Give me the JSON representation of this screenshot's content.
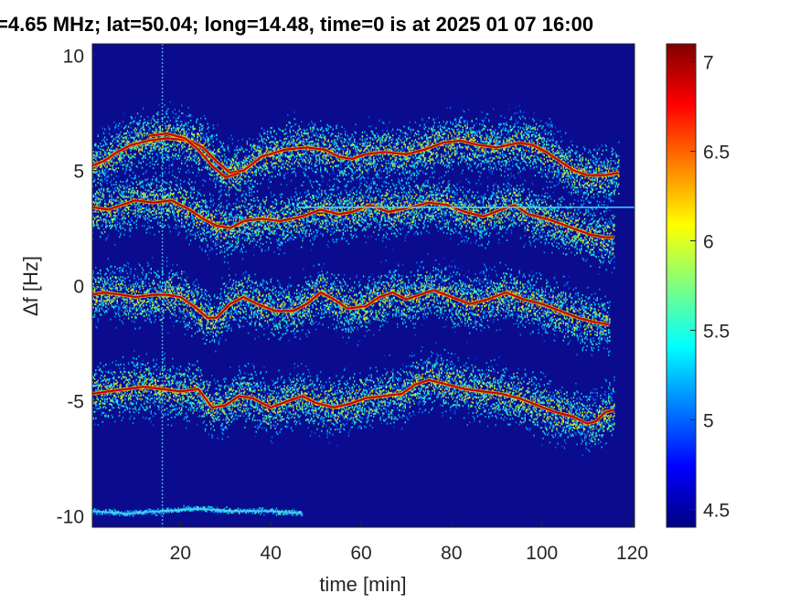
{
  "chart_data": {
    "type": "heatmap",
    "title": "=4.65 MHz;  lat=50.04; long=14.48, time=0 is at 2025 01 07 16:00",
    "xlabel": "time [min]",
    "ylabel": "Δf [Hz]",
    "xlim": [
      0.5,
      120.5
    ],
    "ylim": [
      -10.5,
      10.5
    ],
    "xticks": [
      20,
      40,
      60,
      80,
      100,
      120
    ],
    "yticks": [
      10,
      5,
      0,
      -5,
      -10
    ],
    "colorbar": {
      "clim": [
        4.4,
        7.1
      ],
      "ticks": [
        7,
        6.5,
        6,
        5.5,
        5,
        4.5
      ],
      "colormap": "jet"
    },
    "background_value": 4.4,
    "traces": [
      {
        "name": "upper",
        "points": [
          [
            0.5,
            5.2
          ],
          [
            3,
            5.4
          ],
          [
            6,
            5.8
          ],
          [
            9,
            6.1
          ],
          [
            13,
            6.3
          ],
          [
            17,
            6.4
          ],
          [
            22,
            6.3
          ],
          [
            25,
            6.0
          ],
          [
            28,
            5.4
          ],
          [
            31,
            4.9
          ],
          [
            34,
            5.0
          ],
          [
            38,
            5.6
          ],
          [
            43,
            5.9
          ],
          [
            48,
            6.0
          ],
          [
            52,
            5.9
          ],
          [
            55,
            5.6
          ],
          [
            58,
            5.5
          ],
          [
            61,
            5.7
          ],
          [
            65,
            5.8
          ],
          [
            70,
            5.7
          ],
          [
            74,
            5.9
          ],
          [
            78,
            6.2
          ],
          [
            82,
            6.3
          ],
          [
            86,
            6.1
          ],
          [
            90,
            6.0
          ],
          [
            95,
            6.2
          ],
          [
            98,
            6.1
          ],
          [
            101,
            5.8
          ],
          [
            104,
            5.4
          ],
          [
            107,
            5.0
          ],
          [
            110,
            4.8
          ],
          [
            114,
            4.8
          ],
          [
            117,
            4.9
          ]
        ]
      },
      {
        "name": "upper-secondary",
        "points": [
          [
            13,
            6.5
          ],
          [
            17,
            6.6
          ],
          [
            21,
            6.4
          ],
          [
            24,
            5.9
          ],
          [
            27,
            5.2
          ],
          [
            30,
            4.7
          ],
          [
            33,
            4.9
          ]
        ]
      },
      {
        "name": "middle-upper",
        "points": [
          [
            0.5,
            3.4
          ],
          [
            4,
            3.3
          ],
          [
            7,
            3.5
          ],
          [
            10,
            3.7
          ],
          [
            14,
            3.6
          ],
          [
            18,
            3.7
          ],
          [
            22,
            3.3
          ],
          [
            25,
            2.9
          ],
          [
            28,
            2.6
          ],
          [
            31,
            2.5
          ],
          [
            34,
            2.8
          ],
          [
            38,
            2.9
          ],
          [
            42,
            2.8
          ],
          [
            47,
            3.0
          ],
          [
            51,
            3.3
          ],
          [
            55,
            3.1
          ],
          [
            58,
            3.2
          ],
          [
            62,
            3.5
          ],
          [
            66,
            3.2
          ],
          [
            71,
            3.4
          ],
          [
            75,
            3.6
          ],
          [
            79,
            3.5
          ],
          [
            83,
            3.2
          ],
          [
            87,
            3.0
          ],
          [
            91,
            3.3
          ],
          [
            94,
            3.5
          ],
          [
            97,
            3.1
          ],
          [
            101,
            2.9
          ],
          [
            104,
            2.7
          ],
          [
            108,
            2.4
          ],
          [
            111,
            2.2
          ],
          [
            114,
            2.1
          ],
          [
            116,
            2.1
          ]
        ]
      },
      {
        "name": "middle-lower",
        "points": [
          [
            0.5,
            -0.4
          ],
          [
            3,
            -0.3
          ],
          [
            7,
            -0.4
          ],
          [
            10,
            -0.5
          ],
          [
            14,
            -0.4
          ],
          [
            17,
            -0.4
          ],
          [
            20,
            -0.5
          ],
          [
            23,
            -0.9
          ],
          [
            26,
            -1.4
          ],
          [
            28,
            -1.4
          ],
          [
            31,
            -0.8
          ],
          [
            34,
            -0.5
          ],
          [
            37,
            -0.8
          ],
          [
            41,
            -1.1
          ],
          [
            45,
            -1.1
          ],
          [
            48,
            -0.8
          ],
          [
            51,
            -0.3
          ],
          [
            54,
            -0.6
          ],
          [
            57,
            -1.0
          ],
          [
            61,
            -0.9
          ],
          [
            64,
            -0.5
          ],
          [
            67,
            -0.3
          ],
          [
            70,
            -0.6
          ],
          [
            73,
            -0.4
          ],
          [
            76,
            -0.2
          ],
          [
            80,
            -0.5
          ],
          [
            84,
            -0.8
          ],
          [
            88,
            -0.6
          ],
          [
            92,
            -0.3
          ],
          [
            96,
            -0.6
          ],
          [
            100,
            -0.8
          ],
          [
            104,
            -1.1
          ],
          [
            108,
            -1.4
          ],
          [
            112,
            -1.6
          ],
          [
            115,
            -1.7
          ]
        ]
      },
      {
        "name": "lower",
        "points": [
          [
            0.5,
            -4.7
          ],
          [
            4,
            -4.6
          ],
          [
            8,
            -4.5
          ],
          [
            12,
            -4.4
          ],
          [
            16,
            -4.5
          ],
          [
            20,
            -4.6
          ],
          [
            24,
            -4.5
          ],
          [
            27,
            -5.3
          ],
          [
            30,
            -5.2
          ],
          [
            33,
            -4.8
          ],
          [
            36,
            -4.9
          ],
          [
            40,
            -5.3
          ],
          [
            44,
            -5.0
          ],
          [
            47,
            -4.8
          ],
          [
            50,
            -5.1
          ],
          [
            54,
            -5.3
          ],
          [
            58,
            -5.1
          ],
          [
            61,
            -4.9
          ],
          [
            65,
            -4.8
          ],
          [
            69,
            -4.7
          ],
          [
            72,
            -4.3
          ],
          [
            75,
            -4.1
          ],
          [
            79,
            -4.3
          ],
          [
            83,
            -4.5
          ],
          [
            87,
            -4.6
          ],
          [
            91,
            -4.7
          ],
          [
            95,
            -4.9
          ],
          [
            99,
            -5.2
          ],
          [
            103,
            -5.5
          ],
          [
            107,
            -5.7
          ],
          [
            110,
            -6.0
          ],
          [
            112,
            -5.9
          ],
          [
            114,
            -5.5
          ],
          [
            116,
            -5.4
          ]
        ]
      },
      {
        "name": "bottom-faint",
        "points": [
          [
            0.5,
            -9.8
          ],
          [
            8,
            -9.9
          ],
          [
            16,
            -9.8
          ],
          [
            24,
            -9.7
          ],
          [
            32,
            -9.8
          ],
          [
            40,
            -9.8
          ],
          [
            47,
            -9.9
          ]
        ]
      }
    ],
    "horizontal_line": {
      "y": 3.4,
      "x_start": 46,
      "x_end": 120.5
    },
    "vertical_line": {
      "x": 16
    }
  }
}
